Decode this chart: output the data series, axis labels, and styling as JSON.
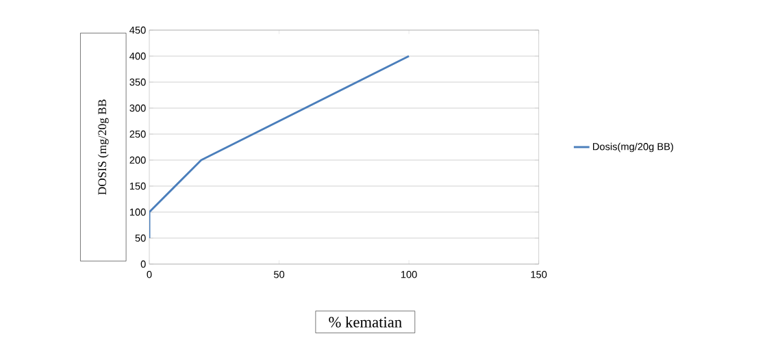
{
  "chart_data": {
    "type": "line",
    "xlabel": "% kematian",
    "ylabel": "DOSIS (mg/20g BB",
    "x": [
      0,
      0,
      20,
      100
    ],
    "series": [
      {
        "name": "Dosis(mg/20g BB)",
        "color": "#4a7ebb",
        "values": [
          50,
          100,
          200,
          400
        ]
      }
    ],
    "xlim": [
      0,
      150
    ],
    "xticks": [
      0,
      50,
      100,
      150
    ],
    "ylim": [
      0,
      450
    ],
    "yticks": [
      0,
      50,
      100,
      150,
      200,
      250,
      300,
      350,
      400,
      450
    ],
    "grid": "y",
    "legend": "right",
    "marker": "none",
    "line_style": "solid"
  }
}
